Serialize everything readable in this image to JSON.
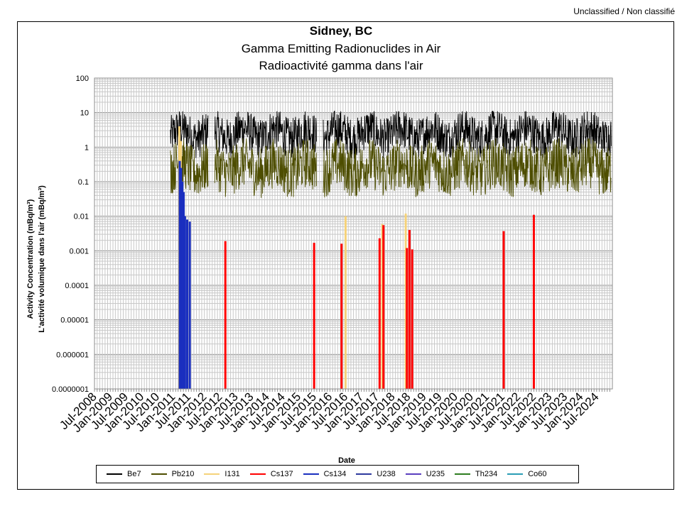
{
  "header": {
    "classification": "Unclassified / Non classifié"
  },
  "chart_data": {
    "type": "line",
    "title": "Sidney, BC",
    "subtitle_en": "Gamma Emitting Radionuclides in Air",
    "subtitle_fr": "Radioactivité gamma dans l'air",
    "xlabel": "Date",
    "ylabel_en": "Activity Concentration  (mBq/m³)",
    "ylabel_fr": "L'activité volumique dans l'air (mBq/m³)",
    "yscale": "log",
    "ylim": [
      1e-07,
      100
    ],
    "yticks": [
      "100",
      "10",
      "1",
      "0.1",
      "0.01",
      "0.001",
      "0.0001",
      "0.00001",
      "0.000001",
      "0.0000001"
    ],
    "xlim": [
      "2008-07-01",
      "2024-12-31"
    ],
    "xticks": [
      "Jul-2008",
      "Jan-2009",
      "Jul-2009",
      "Jan-2010",
      "Jul-2010",
      "Jan-2011",
      "Jul-2011",
      "Jan-2012",
      "Jul-2012",
      "Jan-2013",
      "Jul-2013",
      "Jan-2014",
      "Jul-2014",
      "Jan-2015",
      "Jul-2015",
      "Jan-2016",
      "Jul-2016",
      "Jan-2017",
      "Jul-2017",
      "Jan-2018",
      "Jul-2018",
      "Jan-2019",
      "Jul-2019",
      "Jan-2020",
      "Jul-2020",
      "Jan-2021",
      "Jul-2021",
      "Jan-2022",
      "Jul-2022",
      "Jan-2023",
      "Jul-2023",
      "Jan-2024",
      "Jul-2024"
    ],
    "grid": true,
    "legend_position": "bottom",
    "series": [
      {
        "name": "Be7",
        "color": "#000000",
        "style": "band",
        "segments": [
          [
            "2010-12-01",
            "2011-08-15"
          ],
          [
            "2011-08-20",
            "2012-02-15"
          ],
          [
            "2012-05-01",
            "2015-08-01"
          ],
          [
            "2015-10-15",
            "2024-12-20"
          ]
        ],
        "typical": 2.5,
        "low": 0.3,
        "high": 11
      },
      {
        "name": "Pb210",
        "color": "#4d4d00",
        "style": "band",
        "segments": [
          [
            "2010-12-01",
            "2011-08-15"
          ],
          [
            "2011-08-20",
            "2012-02-15"
          ],
          [
            "2012-05-01",
            "2015-08-01"
          ],
          [
            "2015-10-15",
            "2024-12-20"
          ]
        ],
        "typical": 0.25,
        "low": 0.02,
        "high": 1.8
      },
      {
        "name": "I131",
        "color": "#f5d27a",
        "style": "spikes",
        "points": [
          [
            "2011-03-15",
            4
          ],
          [
            "2011-04-01",
            1.5
          ],
          [
            "2016-07-01",
            0.01
          ],
          [
            "2017-09-01",
            0.006
          ],
          [
            "2018-06-01",
            0.012
          ]
        ]
      },
      {
        "name": "Cs137",
        "color": "#ff0000",
        "style": "spikes",
        "points": [
          [
            "2011-05-01",
            0.02
          ],
          [
            "2012-09-01",
            0.0019
          ],
          [
            "2015-07-01",
            0.0017
          ],
          [
            "2016-05-15",
            0.0016
          ],
          [
            "2017-08-01",
            0.0023
          ],
          [
            "2017-09-15",
            0.0055
          ],
          [
            "2018-06-15",
            0.0012
          ],
          [
            "2018-07-15",
            0.004
          ],
          [
            "2018-08-15",
            0.0011
          ],
          [
            "2021-07-15",
            0.0037
          ],
          [
            "2022-07-01",
            0.011
          ]
        ]
      },
      {
        "name": "Cs134",
        "color": "#1a2fbf",
        "style": "spikes",
        "points": [
          [
            "2011-03-20",
            0.4
          ],
          [
            "2011-04-05",
            0.25
          ],
          [
            "2011-04-20",
            0.1
          ],
          [
            "2011-05-05",
            0.05
          ],
          [
            "2011-05-20",
            0.01
          ],
          [
            "2011-06-15",
            0.008
          ],
          [
            "2011-07-15",
            0.007
          ]
        ]
      },
      {
        "name": "U238",
        "color": "#2e3a9e",
        "style": "none",
        "points": []
      },
      {
        "name": "U235",
        "color": "#5a3fbf",
        "style": "none",
        "points": []
      },
      {
        "name": "Th234",
        "color": "#2e7d20",
        "style": "none",
        "points": []
      },
      {
        "name": "Co60",
        "color": "#2a9db5",
        "style": "none",
        "points": []
      }
    ]
  }
}
